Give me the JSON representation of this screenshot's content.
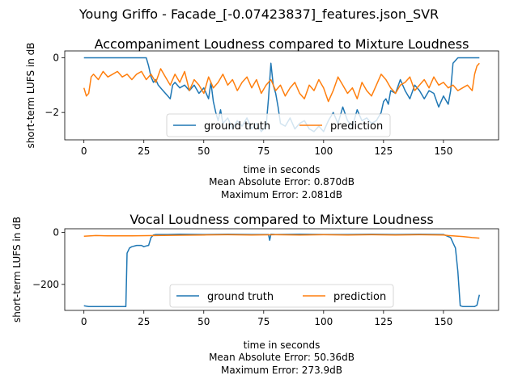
{
  "figure": {
    "suptitle": "Young Griffo - Facade_[-0.07423837]_features.json_SVR"
  },
  "chart_data": [
    {
      "type": "line",
      "title": "Accompaniment Loudness compared to Mixture Loudness",
      "xlabel": "time in seconds",
      "ylabel": "short-term LUFS in dB",
      "xlim": [
        -8,
        173
      ],
      "ylim": [
        -3.0,
        0.25
      ],
      "xticks": [
        "0",
        "25",
        "50",
        "75",
        "100",
        "125",
        "150"
      ],
      "yticks": [
        "0",
        "-2"
      ],
      "grid": false,
      "legend": "lower center",
      "metrics": [
        "Mean Absolute Error: 0.870dB",
        "Maximum Error: 2.081dB"
      ],
      "series": [
        {
          "name": "ground truth",
          "color": "#1f77b4",
          "x": [
            0,
            10,
            20,
            26,
            27,
            28,
            29,
            30,
            31,
            32,
            33,
            34,
            35,
            36,
            37,
            38,
            40,
            42,
            44,
            46,
            48,
            50,
            52,
            53,
            54,
            55,
            56,
            57,
            58,
            60,
            62,
            64,
            66,
            68,
            70,
            72,
            74,
            76,
            77,
            78,
            79,
            80,
            81,
            82,
            84,
            86,
            88,
            90,
            92,
            94,
            96,
            98,
            100,
            102,
            104,
            106,
            108,
            110,
            112,
            114,
            116,
            118,
            120,
            122,
            124,
            125,
            126,
            127,
            128,
            130,
            132,
            134,
            136,
            138,
            140,
            142,
            144,
            146,
            148,
            150,
            152,
            153,
            154,
            156,
            160,
            165
          ],
          "values": [
            0,
            0,
            0,
            0,
            -0.3,
            -0.7,
            -0.9,
            -0.8,
            -1.0,
            -1.1,
            -1.2,
            -1.3,
            -1.4,
            -1.5,
            -1.0,
            -0.9,
            -1.1,
            -1.0,
            -1.2,
            -1.0,
            -1.3,
            -1.1,
            -1.5,
            -0.9,
            -1.6,
            -2.0,
            -2.3,
            -1.9,
            -2.4,
            -2.2,
            -2.6,
            -2.3,
            -2.5,
            -2.2,
            -2.6,
            -2.4,
            -2.7,
            -2.5,
            -1.5,
            -0.2,
            -1.0,
            -1.3,
            -1.8,
            -2.4,
            -2.5,
            -2.2,
            -2.6,
            -2.4,
            -2.3,
            -2.6,
            -2.7,
            -2.5,
            -2.7,
            -2.3,
            -2.0,
            -2.4,
            -1.8,
            -2.3,
            -2.5,
            -1.9,
            -2.3,
            -2.2,
            -2.4,
            -2.3,
            -2.0,
            -1.6,
            -1.5,
            -1.7,
            -1.2,
            -1.3,
            -0.8,
            -1.2,
            -1.5,
            -1.0,
            -1.2,
            -1.5,
            -1.2,
            -1.3,
            -1.8,
            -1.4,
            -1.7,
            -1.2,
            -0.2,
            0,
            0,
            0
          ]
        },
        {
          "name": "prediction",
          "color": "#ff7f0e",
          "x": [
            0,
            1,
            2,
            3,
            4,
            6,
            8,
            10,
            12,
            14,
            16,
            18,
            20,
            22,
            24,
            26,
            28,
            30,
            32,
            34,
            36,
            38,
            40,
            42,
            44,
            46,
            48,
            50,
            52,
            54,
            56,
            58,
            60,
            62,
            64,
            66,
            68,
            70,
            72,
            74,
            76,
            78,
            80,
            82,
            84,
            86,
            88,
            90,
            92,
            94,
            96,
            98,
            100,
            102,
            104,
            106,
            108,
            110,
            112,
            114,
            116,
            118,
            120,
            122,
            124,
            126,
            128,
            130,
            132,
            134,
            136,
            138,
            140,
            142,
            144,
            146,
            148,
            150,
            152,
            154,
            156,
            158,
            160,
            162,
            163,
            164,
            165
          ],
          "values": [
            -1.1,
            -1.4,
            -1.3,
            -0.7,
            -0.6,
            -0.8,
            -0.5,
            -0.7,
            -0.6,
            -0.5,
            -0.7,
            -0.6,
            -0.8,
            -0.6,
            -0.5,
            -0.8,
            -0.6,
            -0.9,
            -0.4,
            -0.7,
            -1.0,
            -0.6,
            -0.9,
            -0.5,
            -1.2,
            -0.8,
            -1.0,
            -1.3,
            -0.7,
            -1.1,
            -0.9,
            -0.6,
            -1.0,
            -0.8,
            -1.2,
            -0.9,
            -0.7,
            -1.1,
            -0.8,
            -1.3,
            -1.0,
            -0.8,
            -1.2,
            -1.0,
            -1.4,
            -1.1,
            -0.9,
            -1.3,
            -1.5,
            -1.0,
            -1.2,
            -0.8,
            -1.1,
            -1.6,
            -1.2,
            -0.7,
            -1.0,
            -1.3,
            -1.1,
            -1.5,
            -0.9,
            -1.2,
            -1.4,
            -1.0,
            -0.6,
            -0.8,
            -1.1,
            -1.3,
            -1.0,
            -0.9,
            -0.7,
            -1.2,
            -1.0,
            -0.8,
            -1.1,
            -0.7,
            -1.0,
            -0.9,
            -1.1,
            -1.0,
            -1.2,
            -1.1,
            -1.0,
            -1.2,
            -0.6,
            -0.3,
            -0.2
          ]
        }
      ]
    },
    {
      "type": "line",
      "title": "Vocal Loudness compared to Mixture Loudness",
      "xlabel": "time in seconds",
      "ylabel": "short-term LUFS in dB",
      "xlim": [
        -8,
        173
      ],
      "ylim": [
        -300,
        14
      ],
      "xticks": [
        "0",
        "25",
        "50",
        "75",
        "100",
        "125",
        "150"
      ],
      "yticks": [
        "0",
        "-200"
      ],
      "grid": false,
      "legend": "lower center",
      "metrics": [
        "Mean Absolute Error: 50.36dB",
        "Maximum Error: 273.9dB"
      ],
      "series": [
        {
          "name": "ground truth",
          "color": "#1f77b4",
          "x": [
            0,
            2,
            5,
            10,
            15,
            17.5,
            18,
            19,
            20,
            22,
            24,
            25,
            26,
            27,
            28,
            29,
            30,
            35,
            40,
            50,
            60,
            70,
            77,
            77.5,
            78,
            80,
            90,
            100,
            110,
            120,
            130,
            140,
            150,
            153,
            154,
            155,
            156,
            157,
            158,
            160,
            163,
            164,
            165
          ],
          "values": [
            -282,
            -285,
            -285,
            -285,
            -285,
            -285,
            -80,
            -60,
            -55,
            -50,
            -50,
            -55,
            -52,
            -50,
            -20,
            -10,
            -8,
            -8,
            -7,
            -8,
            -7,
            -8,
            -8,
            -30,
            -7,
            -8,
            -7,
            -8,
            -8,
            -7,
            -8,
            -7,
            -8,
            -20,
            -40,
            -60,
            -150,
            -282,
            -285,
            -285,
            -285,
            -280,
            -240
          ]
        },
        {
          "name": "prediction",
          "color": "#ff7f0e",
          "x": [
            0,
            5,
            10,
            20,
            30,
            40,
            50,
            60,
            70,
            80,
            90,
            100,
            110,
            120,
            130,
            140,
            150,
            152,
            155,
            158,
            160,
            162,
            165
          ],
          "values": [
            -15,
            -12,
            -13,
            -13,
            -12,
            -11,
            -10,
            -9,
            -10,
            -9,
            -10,
            -9,
            -10,
            -9,
            -10,
            -9,
            -10,
            -12,
            -14,
            -16,
            -18,
            -20,
            -22
          ]
        }
      ]
    }
  ]
}
